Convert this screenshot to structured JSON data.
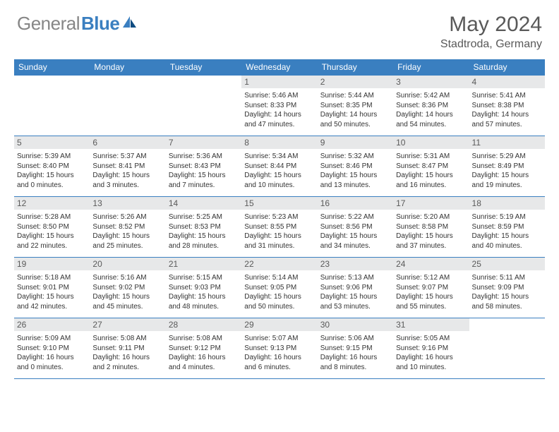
{
  "brand": {
    "gray": "General",
    "blue": "Blue"
  },
  "title": "May 2024",
  "location": "Stadtroda, Germany",
  "colors": {
    "accent": "#3a7fc0",
    "header_text": "#595959",
    "daynum_bg": "#e7e8e9",
    "grid_line": "#3a7fc0",
    "body_text": "#333333",
    "logo_gray": "#868686"
  },
  "day_headers": [
    "Sunday",
    "Monday",
    "Tuesday",
    "Wednesday",
    "Thursday",
    "Friday",
    "Saturday"
  ],
  "weeks": [
    [
      {
        "n": "",
        "sr": "",
        "ss": "",
        "dl": ""
      },
      {
        "n": "",
        "sr": "",
        "ss": "",
        "dl": ""
      },
      {
        "n": "",
        "sr": "",
        "ss": "",
        "dl": ""
      },
      {
        "n": "1",
        "sr": "5:46 AM",
        "ss": "8:33 PM",
        "dl": "14 hours and 47 minutes."
      },
      {
        "n": "2",
        "sr": "5:44 AM",
        "ss": "8:35 PM",
        "dl": "14 hours and 50 minutes."
      },
      {
        "n": "3",
        "sr": "5:42 AM",
        "ss": "8:36 PM",
        "dl": "14 hours and 54 minutes."
      },
      {
        "n": "4",
        "sr": "5:41 AM",
        "ss": "8:38 PM",
        "dl": "14 hours and 57 minutes."
      }
    ],
    [
      {
        "n": "5",
        "sr": "5:39 AM",
        "ss": "8:40 PM",
        "dl": "15 hours and 0 minutes."
      },
      {
        "n": "6",
        "sr": "5:37 AM",
        "ss": "8:41 PM",
        "dl": "15 hours and 3 minutes."
      },
      {
        "n": "7",
        "sr": "5:36 AM",
        "ss": "8:43 PM",
        "dl": "15 hours and 7 minutes."
      },
      {
        "n": "8",
        "sr": "5:34 AM",
        "ss": "8:44 PM",
        "dl": "15 hours and 10 minutes."
      },
      {
        "n": "9",
        "sr": "5:32 AM",
        "ss": "8:46 PM",
        "dl": "15 hours and 13 minutes."
      },
      {
        "n": "10",
        "sr": "5:31 AM",
        "ss": "8:47 PM",
        "dl": "15 hours and 16 minutes."
      },
      {
        "n": "11",
        "sr": "5:29 AM",
        "ss": "8:49 PM",
        "dl": "15 hours and 19 minutes."
      }
    ],
    [
      {
        "n": "12",
        "sr": "5:28 AM",
        "ss": "8:50 PM",
        "dl": "15 hours and 22 minutes."
      },
      {
        "n": "13",
        "sr": "5:26 AM",
        "ss": "8:52 PM",
        "dl": "15 hours and 25 minutes."
      },
      {
        "n": "14",
        "sr": "5:25 AM",
        "ss": "8:53 PM",
        "dl": "15 hours and 28 minutes."
      },
      {
        "n": "15",
        "sr": "5:23 AM",
        "ss": "8:55 PM",
        "dl": "15 hours and 31 minutes."
      },
      {
        "n": "16",
        "sr": "5:22 AM",
        "ss": "8:56 PM",
        "dl": "15 hours and 34 minutes."
      },
      {
        "n": "17",
        "sr": "5:20 AM",
        "ss": "8:58 PM",
        "dl": "15 hours and 37 minutes."
      },
      {
        "n": "18",
        "sr": "5:19 AM",
        "ss": "8:59 PM",
        "dl": "15 hours and 40 minutes."
      }
    ],
    [
      {
        "n": "19",
        "sr": "5:18 AM",
        "ss": "9:01 PM",
        "dl": "15 hours and 42 minutes."
      },
      {
        "n": "20",
        "sr": "5:16 AM",
        "ss": "9:02 PM",
        "dl": "15 hours and 45 minutes."
      },
      {
        "n": "21",
        "sr": "5:15 AM",
        "ss": "9:03 PM",
        "dl": "15 hours and 48 minutes."
      },
      {
        "n": "22",
        "sr": "5:14 AM",
        "ss": "9:05 PM",
        "dl": "15 hours and 50 minutes."
      },
      {
        "n": "23",
        "sr": "5:13 AM",
        "ss": "9:06 PM",
        "dl": "15 hours and 53 minutes."
      },
      {
        "n": "24",
        "sr": "5:12 AM",
        "ss": "9:07 PM",
        "dl": "15 hours and 55 minutes."
      },
      {
        "n": "25",
        "sr": "5:11 AM",
        "ss": "9:09 PM",
        "dl": "15 hours and 58 minutes."
      }
    ],
    [
      {
        "n": "26",
        "sr": "5:09 AM",
        "ss": "9:10 PM",
        "dl": "16 hours and 0 minutes."
      },
      {
        "n": "27",
        "sr": "5:08 AM",
        "ss": "9:11 PM",
        "dl": "16 hours and 2 minutes."
      },
      {
        "n": "28",
        "sr": "5:08 AM",
        "ss": "9:12 PM",
        "dl": "16 hours and 4 minutes."
      },
      {
        "n": "29",
        "sr": "5:07 AM",
        "ss": "9:13 PM",
        "dl": "16 hours and 6 minutes."
      },
      {
        "n": "30",
        "sr": "5:06 AM",
        "ss": "9:15 PM",
        "dl": "16 hours and 8 minutes."
      },
      {
        "n": "31",
        "sr": "5:05 AM",
        "ss": "9:16 PM",
        "dl": "16 hours and 10 minutes."
      },
      {
        "n": "",
        "sr": "",
        "ss": "",
        "dl": ""
      }
    ]
  ],
  "labels": {
    "sunrise": "Sunrise: ",
    "sunset": "Sunset: ",
    "daylight": "Daylight: "
  }
}
